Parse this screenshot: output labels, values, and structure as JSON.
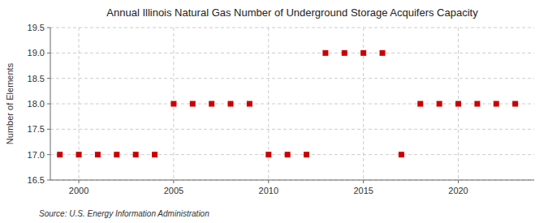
{
  "chart_data": {
    "type": "scatter",
    "title": "Annual Illinois Natural Gas Number of Underground Storage Acquifers Capacity",
    "ylabel": "Number of Elements",
    "source": "Source: U.S. Energy Information Administration",
    "x": [
      1999,
      2000,
      2001,
      2002,
      2003,
      2004,
      2005,
      2006,
      2007,
      2008,
      2009,
      2010,
      2011,
      2012,
      2013,
      2014,
      2015,
      2016,
      2017,
      2018,
      2019,
      2020,
      2021,
      2022,
      2023
    ],
    "values": [
      17,
      17,
      17,
      17,
      17,
      17,
      18,
      18,
      18,
      18,
      18,
      17,
      17,
      17,
      19,
      19,
      19,
      19,
      17,
      18,
      18,
      18,
      18,
      18,
      18
    ],
    "color": "#cc0000",
    "marker": "square",
    "xlim": [
      1998.5,
      2024.0
    ],
    "xticks": [
      2000,
      2005,
      2010,
      2015,
      2020
    ],
    "ylim": [
      16.5,
      19.5
    ],
    "yticks": [
      16.5,
      {
        "value": 17,
        "label": "17.0"
      },
      17.5,
      {
        "value": 18,
        "label": "18.0"
      },
      18.5,
      {
        "value": 19,
        "label": "19.0"
      },
      19.5
    ],
    "grid": true
  }
}
